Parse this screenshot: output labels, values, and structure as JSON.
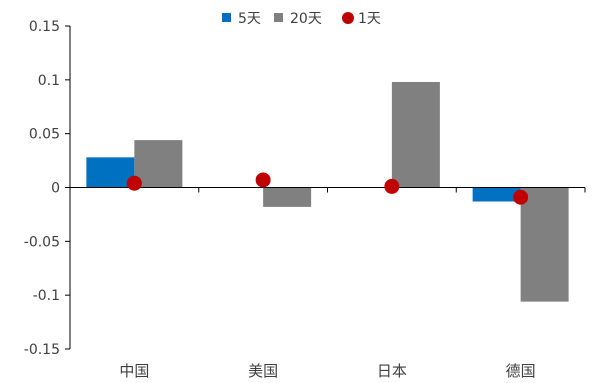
{
  "chart_data": {
    "type": "bar",
    "categories": [
      "中国",
      "美国",
      "日本",
      "德国"
    ],
    "series": [
      {
        "name": "5天",
        "kind": "bar",
        "color": "#0070C0",
        "values": [
          0.028,
          0.0,
          0.0,
          -0.013
        ]
      },
      {
        "name": "20天",
        "kind": "bar",
        "color": "#808080",
        "values": [
          0.044,
          -0.018,
          0.098,
          -0.106
        ]
      },
      {
        "name": "1天",
        "kind": "scatter",
        "color": "#C00000",
        "values": [
          0.004,
          0.007,
          0.001,
          -0.009
        ]
      }
    ],
    "yticks": [
      "0.15",
      "0.1",
      "0.05",
      "0",
      "-0.05",
      "-0.1",
      "-0.15"
    ],
    "ylim": [
      -0.15,
      0.15
    ],
    "grid": false,
    "legend": "top-center"
  }
}
